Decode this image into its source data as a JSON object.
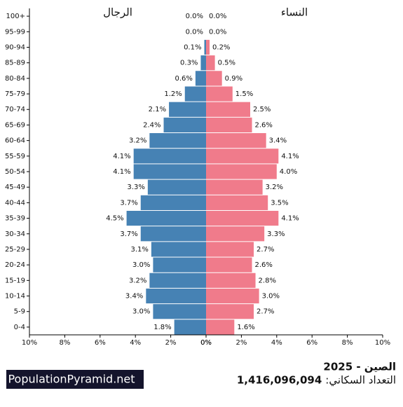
{
  "chart_data": {
    "type": "population_pyramid",
    "title": "الصين - 2025",
    "population_label": "التعداد السكاني:",
    "population": "1,416,096,094",
    "brand": "PopulationPyramid.net",
    "categories": [
      "100+",
      "95-99",
      "90-94",
      "85-89",
      "80-84",
      "75-79",
      "70-74",
      "65-69",
      "60-64",
      "55-59",
      "50-54",
      "45-49",
      "40-44",
      "35-39",
      "30-34",
      "25-29",
      "20-24",
      "15-19",
      "10-14",
      "5-9",
      "0-4"
    ],
    "series": [
      {
        "name": "الرجال",
        "color": "#4682b4",
        "side": "left",
        "values": [
          0.0,
          0.0,
          0.1,
          0.3,
          0.6,
          1.2,
          2.1,
          2.4,
          3.2,
          4.1,
          4.1,
          3.3,
          3.7,
          4.5,
          3.7,
          3.1,
          3.0,
          3.2,
          3.4,
          3.0,
          1.8
        ],
        "value_labels": [
          "0.0%",
          "0.0%",
          "0.1%",
          "0.3%",
          "0.6%",
          "1.2%",
          "2.1%",
          "2.4%",
          "3.2%",
          "4.1%",
          "4.1%",
          "3.3%",
          "3.7%",
          "4.5%",
          "3.7%",
          "3.1%",
          "3.0%",
          "3.2%",
          "3.4%",
          "3.0%",
          "1.8%"
        ]
      },
      {
        "name": "النساء",
        "color": "#f07b8b",
        "side": "right",
        "values": [
          0.0,
          0.0,
          0.2,
          0.5,
          0.9,
          1.5,
          2.5,
          2.6,
          3.4,
          4.1,
          4.0,
          3.2,
          3.5,
          4.1,
          3.3,
          2.7,
          2.6,
          2.8,
          3.0,
          2.7,
          1.6
        ],
        "value_labels": [
          "0.0%",
          "0.0%",
          "0.2%",
          "0.5%",
          "0.9%",
          "1.5%",
          "2.5%",
          "2.6%",
          "3.4%",
          "4.1%",
          "4.0%",
          "3.2%",
          "3.5%",
          "4.1%",
          "3.3%",
          "2.7%",
          "2.6%",
          "2.8%",
          "3.0%",
          "2.7%",
          "1.6%"
        ]
      }
    ],
    "xlim": [
      0,
      10
    ],
    "xticks": [
      {
        "value": 0,
        "label": "0%"
      },
      {
        "value": 2,
        "label": "2%"
      },
      {
        "value": 4,
        "label": "4%"
      },
      {
        "value": 6,
        "label": "6%"
      },
      {
        "value": 8,
        "label": "8%"
      },
      {
        "value": 10,
        "label": "10%"
      }
    ]
  }
}
